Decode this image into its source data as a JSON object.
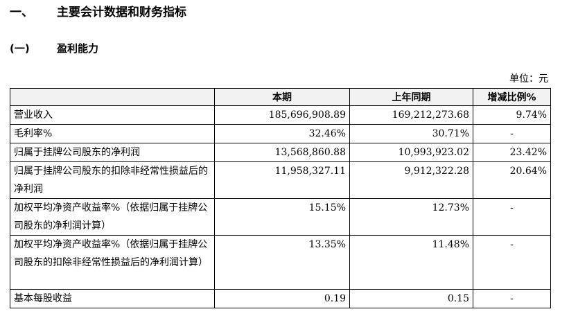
{
  "heading": {
    "section_number": "一、",
    "section_title": "主要会计数据和财务指标",
    "subsection_number": "(一)",
    "subsection_title": "盈利能力"
  },
  "unit_label": "单位：元",
  "table": {
    "columns": [
      "",
      "本期",
      "上年同期",
      "增减比例%"
    ],
    "rows": [
      {
        "label": "营业收入",
        "current": "185,696,908.89",
        "previous": "169,212,273.68",
        "change": "9.74%"
      },
      {
        "label": "毛利率%",
        "current": "32.46%",
        "previous": "30.71%",
        "change": "-"
      },
      {
        "label": "归属于挂牌公司股东的净利润",
        "current": "13,568,860.88",
        "previous": "10,993,923.02",
        "change": "23.42%"
      },
      {
        "label": "归属于挂牌公司股东的扣除非经常性损益后的净利润",
        "current": "11,958,327.11",
        "previous": "9,912,322.28",
        "change": "20.64%"
      },
      {
        "label": "加权平均净资产收益率%（依据归属于挂牌公司股东的净利润计算）",
        "current": "15.15%",
        "previous": "12.73%",
        "change": "-"
      },
      {
        "label": "加权平均净资产收益率%（依据归属于挂牌公司股东的扣除非经常性损益后的净利润计算）",
        "current": "13.35%",
        "previous": "11.48%",
        "change": "-"
      },
      {
        "label": "基本每股收益",
        "current": "0.19",
        "previous": "0.15",
        "change": "-"
      }
    ]
  }
}
